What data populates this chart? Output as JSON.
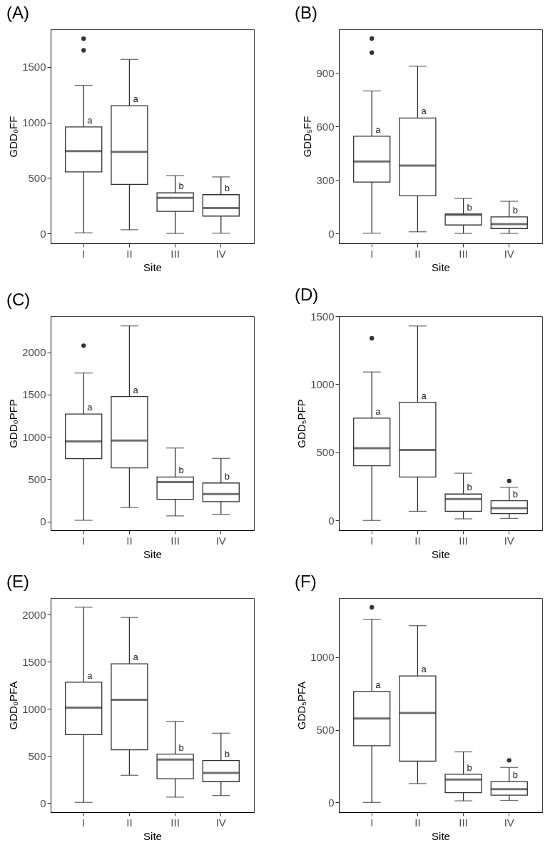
{
  "chart_data": [
    {
      "type": "box",
      "title": "(A)",
      "xlabel": "Site",
      "ylabel": "GDD₀FF",
      "categories": [
        "I",
        "II",
        "III",
        "IV"
      ],
      "ylim": [
        -90,
        1840
      ],
      "yticks": [
        0,
        500,
        1000,
        1500
      ],
      "boxes": [
        {
          "low": 5,
          "q1": 554,
          "median": 741,
          "q3": 960,
          "high": 1334,
          "outliers": [
            1755,
            1650
          ]
        },
        {
          "low": 33,
          "q1": 441,
          "median": 735,
          "q3": 1151,
          "high": 1568
        },
        {
          "low": 0,
          "q1": 199,
          "median": 320,
          "q3": 365,
          "high": 521
        },
        {
          "low": 2,
          "q1": 156,
          "median": 228,
          "q3": 349,
          "high": 509
        }
      ],
      "annotations": [
        {
          "text": "a",
          "x": "I",
          "y": 960
        },
        {
          "text": "a",
          "x": "II",
          "y": 1151
        },
        {
          "text": "b",
          "x": "III",
          "y": 365
        },
        {
          "text": "b",
          "x": "IV",
          "y": 349
        }
      ]
    },
    {
      "type": "box",
      "title": "(B)",
      "xlabel": "Site",
      "ylabel": "GDD₅FF",
      "categories": [
        "I",
        "II",
        "III",
        "IV"
      ],
      "ylim": [
        -56,
        1145
      ],
      "yticks": [
        0,
        300,
        600,
        900
      ],
      "boxes": [
        {
          "low": 1,
          "q1": 288,
          "median": 403,
          "q3": 545,
          "high": 799,
          "outliers": [
            1093,
            1014
          ]
        },
        {
          "low": 9,
          "q1": 211,
          "median": 380,
          "q3": 647,
          "high": 938
        },
        {
          "low": 0,
          "q1": 47,
          "median": 104,
          "q3": 109,
          "high": 196
        },
        {
          "low": 0,
          "q1": 27,
          "median": 52,
          "q3": 93,
          "high": 180
        }
      ],
      "annotations": [
        {
          "text": "a",
          "x": "I",
          "y": 545
        },
        {
          "text": "a",
          "x": "II",
          "y": 647
        },
        {
          "text": "b",
          "x": "III",
          "y": 109
        },
        {
          "text": "b",
          "x": "IV",
          "y": 93
        }
      ]
    },
    {
      "type": "box",
      "title": "(C)",
      "xlabel": "Site",
      "ylabel": "GDD₀PFP",
      "categories": [
        "I",
        "II",
        "III",
        "IV"
      ],
      "ylim": [
        -105,
        2427
      ],
      "yticks": [
        0,
        500,
        1000,
        1500,
        2000
      ],
      "boxes": [
        {
          "low": 13,
          "q1": 742,
          "median": 946,
          "q3": 1269,
          "high": 1755,
          "outliers": [
            2078
          ]
        },
        {
          "low": 164,
          "q1": 632,
          "median": 957,
          "q3": 1476,
          "high": 2312
        },
        {
          "low": 65,
          "q1": 261,
          "median": 465,
          "q3": 524,
          "high": 868
        },
        {
          "low": 83,
          "q1": 234,
          "median": 323,
          "q3": 454,
          "high": 745
        }
      ],
      "annotations": [
        {
          "text": "a",
          "x": "I",
          "y": 1269
        },
        {
          "text": "a",
          "x": "II",
          "y": 1476
        },
        {
          "text": "b",
          "x": "III",
          "y": 524
        },
        {
          "text": "b",
          "x": "IV",
          "y": 454
        }
      ]
    },
    {
      "type": "box",
      "title": "(D)",
      "xlabel": "Site",
      "ylabel": "GDD₅PFP",
      "categories": [
        "I",
        "II",
        "III",
        "IV"
      ],
      "ylim": [
        -72,
        1500
      ],
      "yticks": [
        0,
        500,
        1000,
        1500
      ],
      "boxes": [
        {
          "low": 0,
          "q1": 402,
          "median": 531,
          "q3": 751,
          "high": 1090,
          "outliers": [
            1338
          ]
        },
        {
          "low": 67,
          "q1": 319,
          "median": 517,
          "q3": 868,
          "high": 1428
        },
        {
          "low": 12,
          "q1": 68,
          "median": 157,
          "q3": 194,
          "high": 347
        },
        {
          "low": 15,
          "q1": 50,
          "median": 90,
          "q3": 145,
          "high": 244,
          "outliers": [
            290
          ]
        }
      ],
      "annotations": [
        {
          "text": "a",
          "x": "I",
          "y": 751
        },
        {
          "text": "a",
          "x": "II",
          "y": 868
        },
        {
          "text": "b",
          "x": "III",
          "y": 194
        },
        {
          "text": "b",
          "x": "IV",
          "y": 145
        }
      ]
    },
    {
      "type": "box",
      "title": "(E)",
      "xlabel": "Site",
      "ylabel": "GDD₀PFA",
      "categories": [
        "I",
        "II",
        "III",
        "IV"
      ],
      "ylim": [
        -97,
        2177
      ],
      "yticks": [
        0,
        500,
        1000,
        1500,
        2000
      ],
      "boxes": [
        {
          "low": 7,
          "q1": 726,
          "median": 1013,
          "q3": 1284,
          "high": 2080
        },
        {
          "low": 295,
          "q1": 566,
          "median": 1096,
          "q3": 1478,
          "high": 1971
        },
        {
          "low": 63,
          "q1": 259,
          "median": 462,
          "q3": 520,
          "high": 868
        },
        {
          "low": 80,
          "q1": 227,
          "median": 319,
          "q3": 452,
          "high": 742
        }
      ],
      "annotations": [
        {
          "text": "a",
          "x": "I",
          "y": 1284
        },
        {
          "text": "a",
          "x": "II",
          "y": 1478
        },
        {
          "text": "b",
          "x": "III",
          "y": 520
        },
        {
          "text": "b",
          "x": "IV",
          "y": 452
        }
      ]
    },
    {
      "type": "box",
      "title": "(F)",
      "xlabel": "Site",
      "ylabel": "GDD₅PFA",
      "categories": [
        "I",
        "II",
        "III",
        "IV"
      ],
      "ylim": [
        -67,
        1406
      ],
      "yticks": [
        0,
        500,
        1000
      ],
      "boxes": [
        {
          "low": 0,
          "q1": 390,
          "median": 577,
          "q3": 763,
          "high": 1260,
          "outliers": [
            1342
          ]
        },
        {
          "low": 130,
          "q1": 284,
          "median": 616,
          "q3": 870,
          "high": 1216
        },
        {
          "low": 11,
          "q1": 67,
          "median": 158,
          "q3": 194,
          "high": 348
        },
        {
          "low": 14,
          "q1": 50,
          "median": 91,
          "q3": 144,
          "high": 241,
          "outliers": [
            290
          ]
        }
      ],
      "annotations": [
        {
          "text": "a",
          "x": "I",
          "y": 763
        },
        {
          "text": "a",
          "x": "II",
          "y": 870
        },
        {
          "text": "b",
          "x": "III",
          "y": 194
        },
        {
          "text": "b",
          "x": "IV",
          "y": 144
        }
      ]
    }
  ]
}
